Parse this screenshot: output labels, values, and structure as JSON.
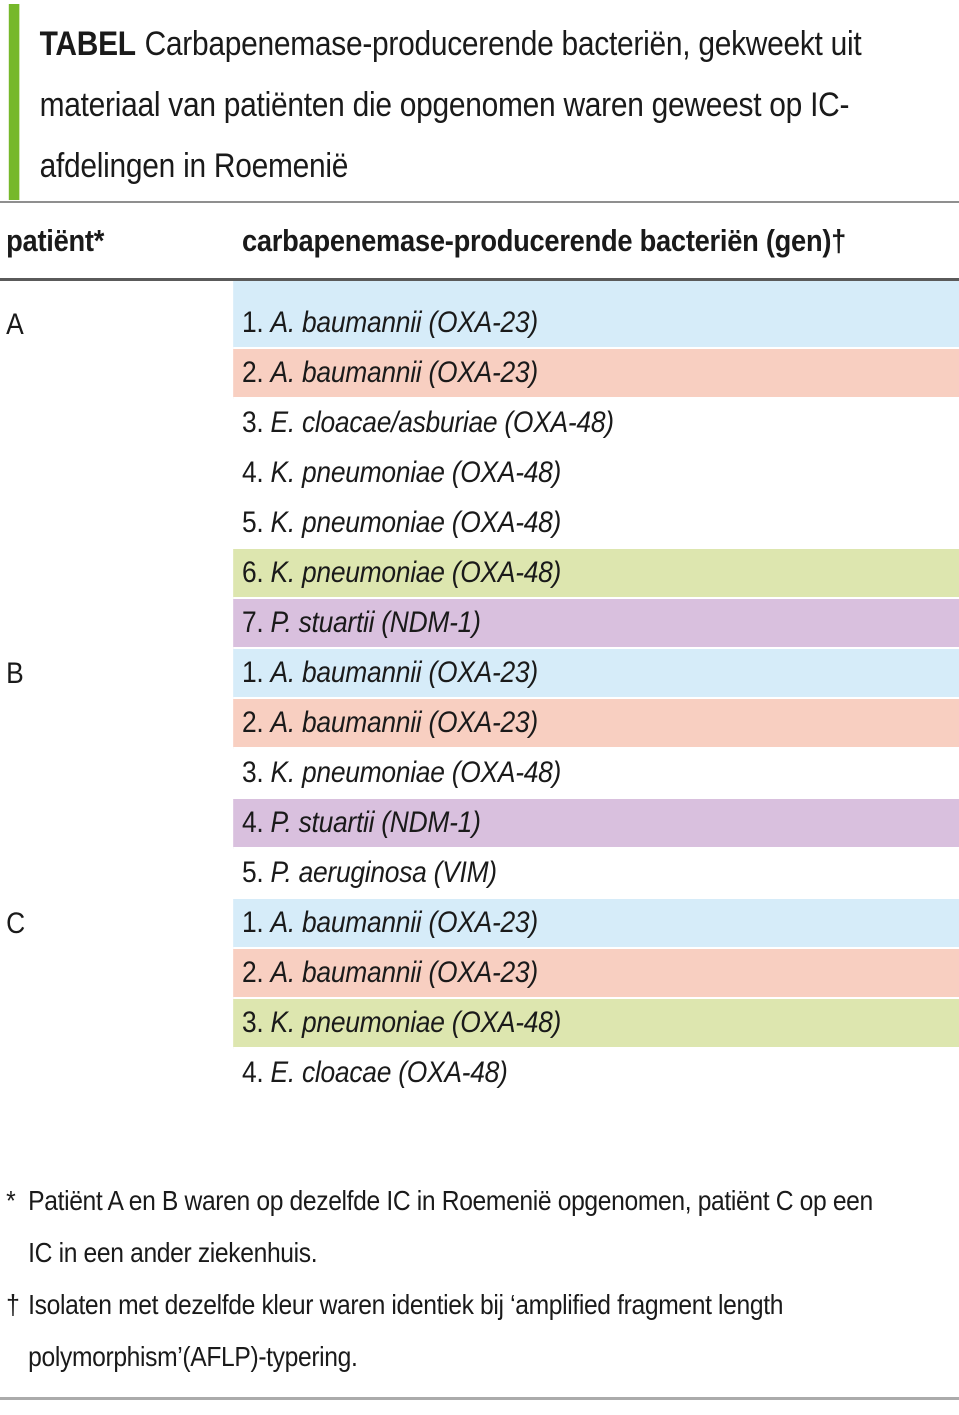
{
  "caption": {
    "label": "TABEL",
    "line1": "Carbapenemase-producerende bacteriën, gekweekt uit",
    "line2": "materiaal van patiënten die opgenomen waren geweest op IC-",
    "line3": "afdelingen in Roemenië"
  },
  "table": {
    "col1_header": "patiënt*",
    "col2_header": "carbapenemase-producerende bacteriën (gen)†",
    "rows": [
      {
        "patient": "A",
        "num": "1.",
        "name": "A. baumannii (OXA-23)",
        "color": "blue"
      },
      {
        "patient": "",
        "num": "2.",
        "name": "A. baumannii (OXA-23)",
        "color": "salmon"
      },
      {
        "patient": "",
        "num": "3.",
        "name": "E. cloacae/asburiae (OXA-48)",
        "color": "white"
      },
      {
        "patient": "",
        "num": "4.",
        "name": "K. pneumoniae (OXA-48)",
        "color": "white"
      },
      {
        "patient": "",
        "num": "5.",
        "name": "K. pneumoniae (OXA-48)",
        "color": "white"
      },
      {
        "patient": "",
        "num": "6.",
        "name": "K. pneumoniae (OXA-48)",
        "color": "green"
      },
      {
        "patient": "",
        "num": "7.",
        "name": "P. stuartii (NDM-1)",
        "color": "purple"
      },
      {
        "patient": "B",
        "num": "1.",
        "name": "A. baumannii (OXA-23)",
        "color": "blue"
      },
      {
        "patient": "",
        "num": "2.",
        "name": "A. baumannii (OXA-23)",
        "color": "salmon"
      },
      {
        "patient": "",
        "num": "3.",
        "name": "K. pneumoniae (OXA-48)",
        "color": "white"
      },
      {
        "patient": "",
        "num": "4.",
        "name": "P. stuartii (NDM-1)",
        "color": "purple"
      },
      {
        "patient": "",
        "num": "5.",
        "name": "P. aeruginosa (VIM)",
        "color": "white"
      },
      {
        "patient": "C",
        "num": "1.",
        "name": "A. baumannii (OXA-23)",
        "color": "blue"
      },
      {
        "patient": "",
        "num": "2.",
        "name": "A. baumannii (OXA-23)",
        "color": "salmon"
      },
      {
        "patient": "",
        "num": "3.",
        "name": "K. pneumoniae (OXA-48)",
        "color": "green"
      },
      {
        "patient": "",
        "num": "4.",
        "name": "E. cloacae (OXA-48)",
        "color": "white"
      }
    ]
  },
  "footnotes": [
    {
      "marker": "*",
      "lines": [
        "Patiënt A en B waren op dezelfde IC in Roemenië opgenomen, patiënt C op een",
        "IC in een ander ziekenhuis."
      ]
    },
    {
      "marker": "†",
      "lines": [
        "Isolaten met dezelfde kleur waren identiek bij ‘amplified fragment length",
        "polymorphism’(AFLP)-typering."
      ]
    }
  ],
  "colors": {
    "accent_green_bar": "#76b82a",
    "row_blue": "#d6ecf9",
    "row_salmon": "#f8cfc1",
    "row_green": "#dde6af",
    "row_purple": "#d9c0de",
    "row_white": "#ffffff",
    "rule_gray": "#8f8f8f",
    "header_rule_dark": "#5a5a5a",
    "bottom_rule_gray": "#ababab",
    "text": "#1a1a1a"
  }
}
